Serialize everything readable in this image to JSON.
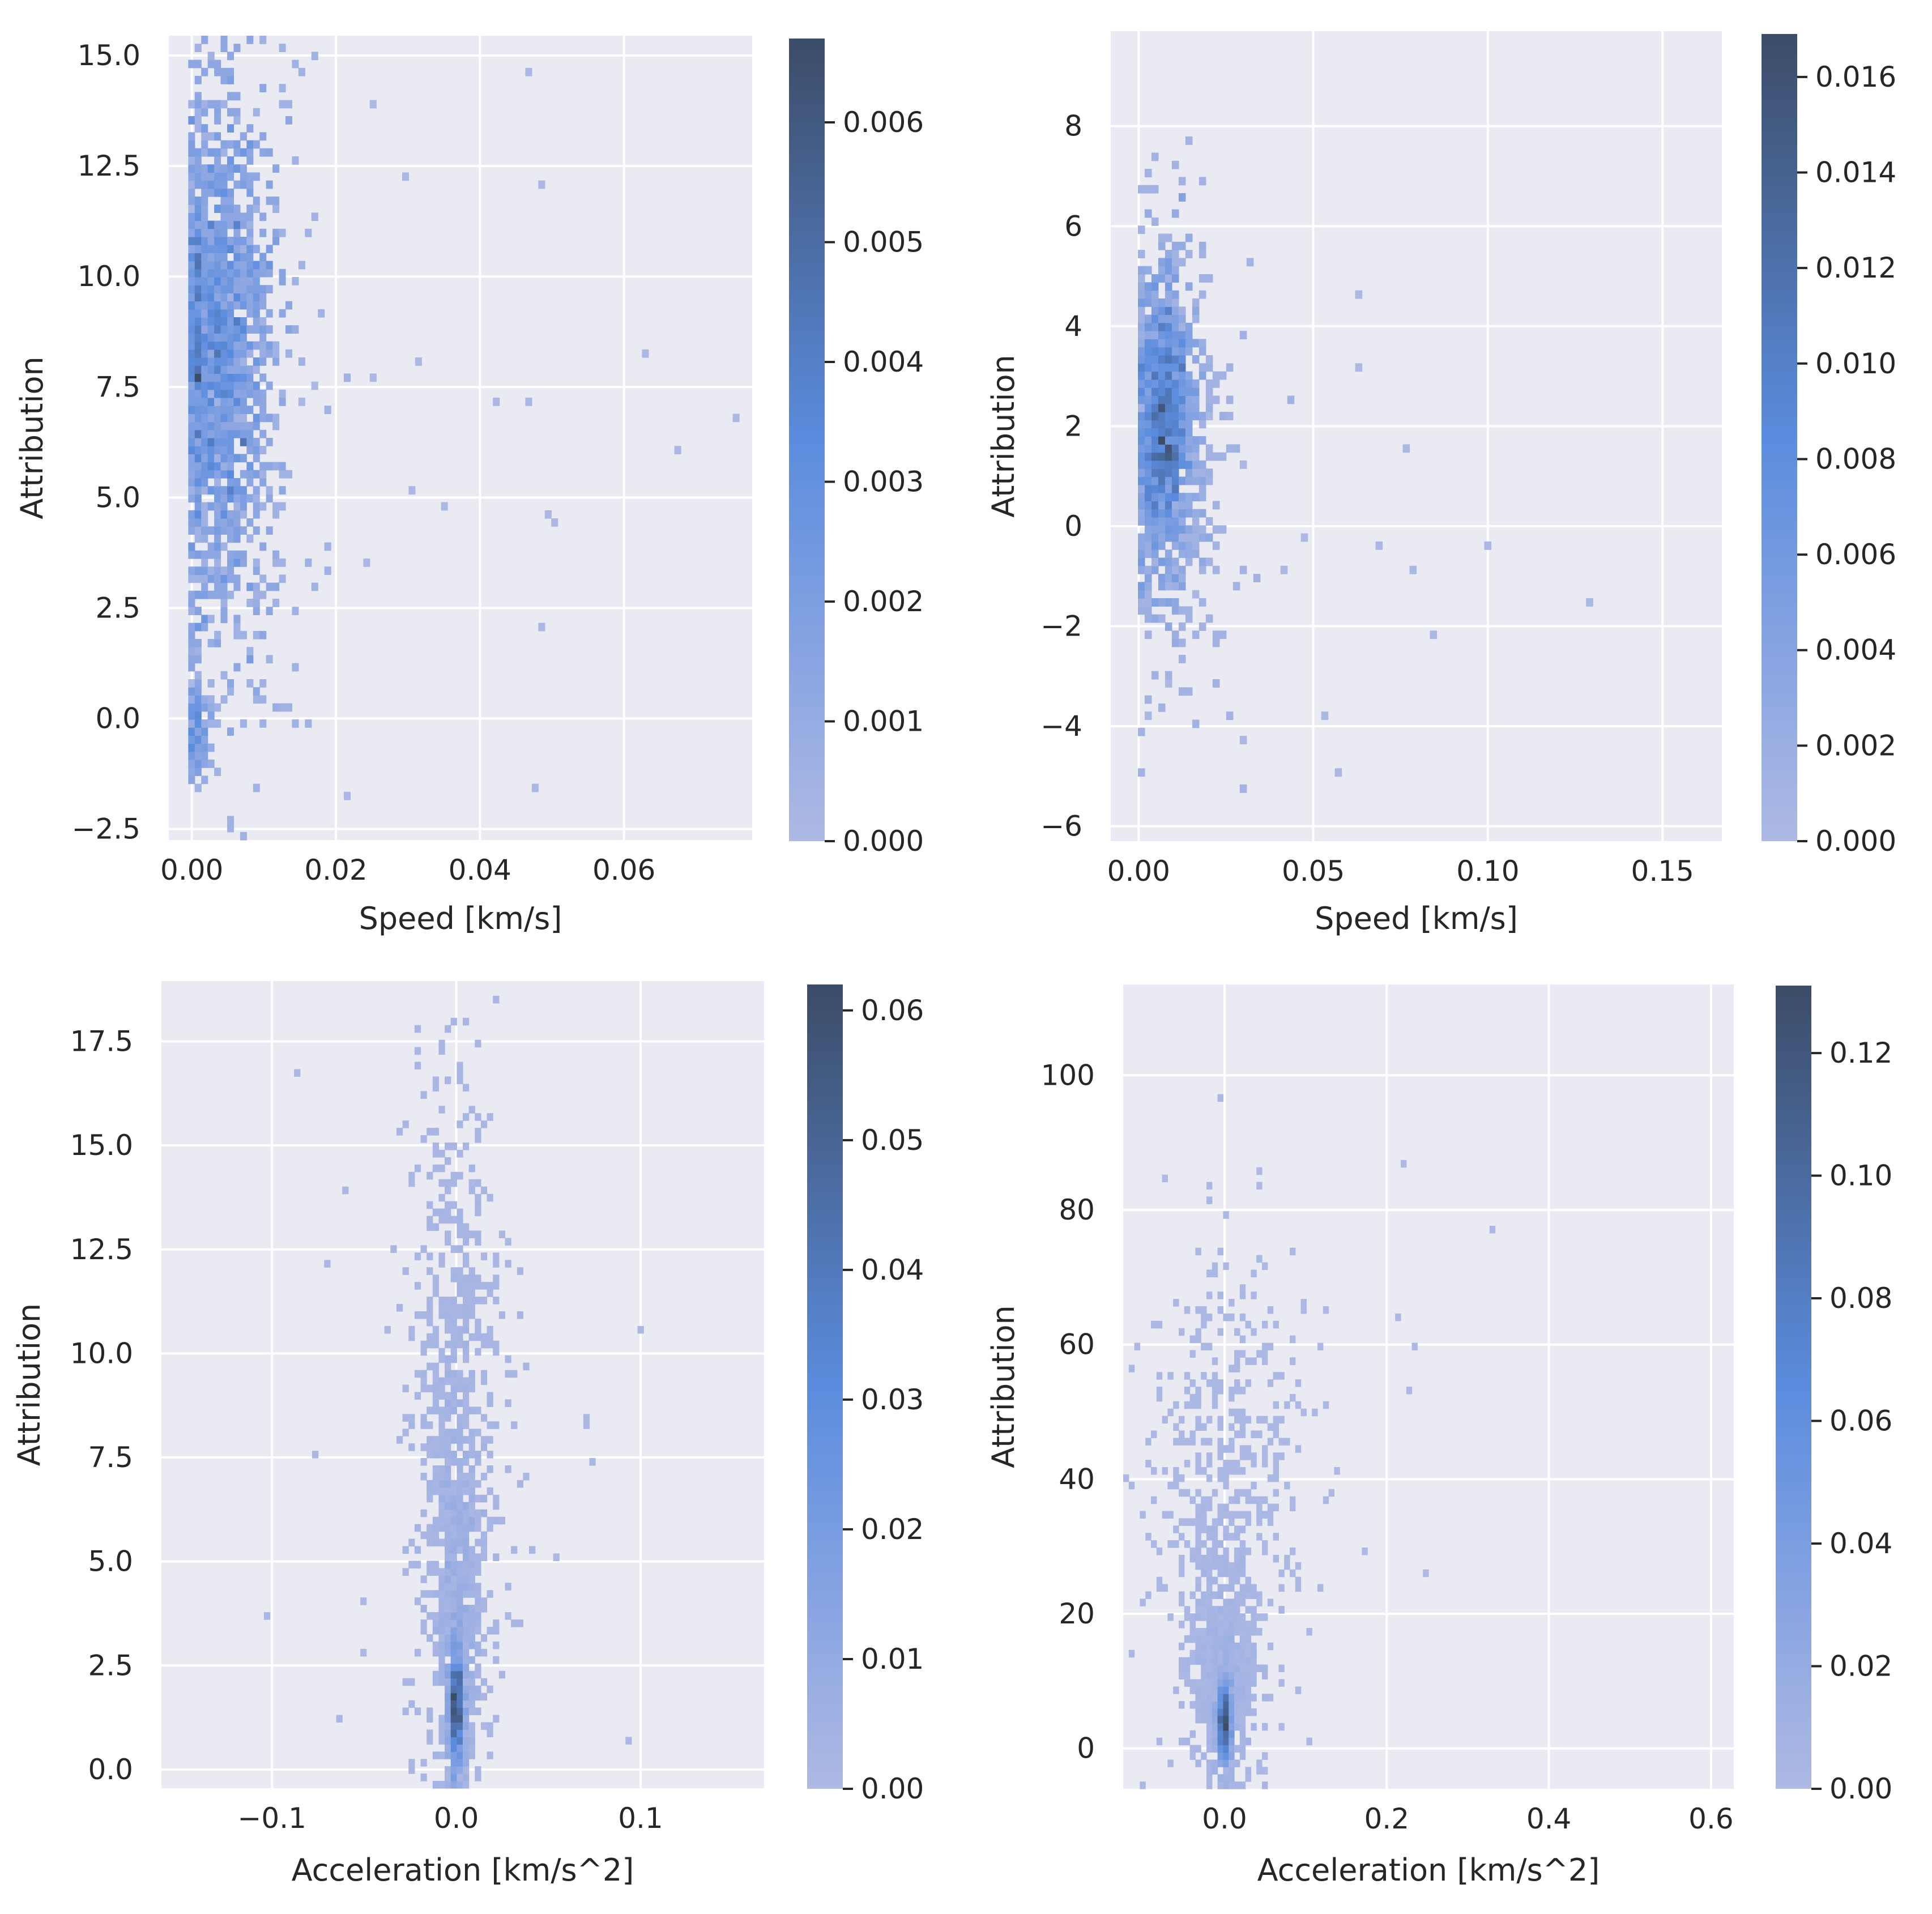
{
  "figure": {
    "background": "#ffffff",
    "panel_bg": "#eaeaf2",
    "grid_color": "#ffffff",
    "text_color": "#262626"
  },
  "colormap": {
    "low": "#aeb9e4",
    "mid": "#5b8cde",
    "high": "#3c4c67"
  },
  "chart_data": [
    {
      "id": "p1",
      "type": "heatmap",
      "title": "",
      "xlabel": "Speed [km/s]",
      "ylabel": "Attribution",
      "xlim": [
        -0.0032,
        0.0778
      ],
      "ylim": [
        -2.75,
        15.45
      ],
      "xticks": [
        0.0,
        0.02,
        0.04,
        0.06
      ],
      "xticklabels": [
        "0.00",
        "0.02",
        "0.04",
        "0.06"
      ],
      "yticks": [
        -2.5,
        0.0,
        2.5,
        5.0,
        7.5,
        10.0,
        12.5,
        15.0
      ],
      "yticklabels": [
        "−2.5",
        "0.0",
        "2.5",
        "5.0",
        "7.5",
        "10.0",
        "12.5",
        "15.0"
      ],
      "colorbar": {
        "min": 0.0,
        "max": 0.0067,
        "ticks": [
          0.0,
          0.001,
          0.002,
          0.003,
          0.004,
          0.005,
          0.006
        ],
        "ticklabels": [
          "0.000",
          "0.001",
          "0.002",
          "0.003",
          "0.004",
          "0.005",
          "0.006"
        ]
      },
      "bins": {
        "nx": 90,
        "ny": 100,
        "seed": 11
      },
      "clusters": [
        {
          "xc": 0.0035,
          "xs": 0.0035,
          "x_min": 0.0,
          "yc": 8.5,
          "ys": 2.8,
          "n": 1300,
          "w": 1.0
        },
        {
          "xc": 0.0045,
          "xs": 0.006,
          "x_min": 0.0,
          "yc": 7.0,
          "ys": 4.8,
          "n": 400,
          "w": 0.25
        },
        {
          "xc": 0.0005,
          "xs": 0.001,
          "x_min": 0.0,
          "yc": -0.2,
          "ys": 0.6,
          "n": 120,
          "w": 0.6
        },
        {
          "xc": 0.03,
          "xs": 0.025,
          "x_min": 0.0,
          "yc": 6.0,
          "ys": 5.0,
          "n": 30,
          "w": 0.02
        }
      ]
    },
    {
      "id": "p2",
      "type": "heatmap",
      "title": "",
      "xlabel": "Speed [km/s]",
      "ylabel": "Attribution",
      "xlim": [
        -0.008,
        0.167
      ],
      "ylim": [
        -6.3,
        9.9
      ],
      "xticks": [
        0.0,
        0.05,
        0.1,
        0.15
      ],
      "xticklabels": [
        "0.00",
        "0.05",
        "0.10",
        "0.15"
      ],
      "yticks": [
        -6,
        -4,
        -2,
        0,
        2,
        4,
        6,
        8
      ],
      "yticklabels": [
        "−6",
        "−4",
        "−2",
        "0",
        "2",
        "4",
        "6",
        "8"
      ],
      "colorbar": {
        "min": 0.0,
        "max": 0.0169,
        "ticks": [
          0.0,
          0.002,
          0.004,
          0.006,
          0.008,
          0.01,
          0.012,
          0.014,
          0.016
        ],
        "ticklabels": [
          "0.000",
          "0.002",
          "0.004",
          "0.006",
          "0.008",
          "0.010",
          "0.012",
          "0.014",
          "0.016"
        ]
      },
      "bins": {
        "nx": 90,
        "ny": 100,
        "seed": 23
      },
      "clusters": [
        {
          "xc": 0.007,
          "xs": 0.004,
          "x_min": 0.0,
          "yc": 2.0,
          "ys": 1.4,
          "n": 1200,
          "w": 1.0
        },
        {
          "xc": 0.009,
          "xs": 0.009,
          "x_min": 0.0,
          "yc": 1.5,
          "ys": 2.4,
          "n": 400,
          "w": 0.25
        },
        {
          "xc": 0.04,
          "xs": 0.045,
          "x_min": 0.0,
          "yc": 0.0,
          "ys": 2.5,
          "n": 25,
          "w": 0.02
        }
      ]
    },
    {
      "id": "p3",
      "type": "heatmap",
      "title": "",
      "xlabel": "Acceleration [km/s^2]",
      "ylabel": "Attribution",
      "xlim": [
        -0.16,
        0.167
      ],
      "ylim": [
        -0.45,
        18.95
      ],
      "xticks": [
        -0.1,
        0.0,
        0.1
      ],
      "xticklabels": [
        "−0.1",
        "0.0",
        "0.1"
      ],
      "yticks": [
        0.0,
        2.5,
        5.0,
        7.5,
        10.0,
        12.5,
        15.0,
        17.5
      ],
      "yticklabels": [
        "0.0",
        "2.5",
        "5.0",
        "7.5",
        "10.0",
        "12.5",
        "15.0",
        "17.5"
      ],
      "colorbar": {
        "min": 0.0,
        "max": 0.062,
        "ticks": [
          0.0,
          0.01,
          0.02,
          0.03,
          0.04,
          0.05,
          0.06
        ],
        "ticklabels": [
          "0.00",
          "0.01",
          "0.02",
          "0.03",
          "0.04",
          "0.05",
          "0.06"
        ]
      },
      "bins": {
        "nx": 100,
        "ny": 110,
        "seed": 37
      },
      "clusters": [
        {
          "xc": 0.0,
          "xs": 0.0018,
          "yc": 1.5,
          "ys": 0.7,
          "n": 600,
          "w": 1.0
        },
        {
          "xc": 0.0,
          "xs": 0.006,
          "yc": 4.0,
          "ys": 2.5,
          "n": 500,
          "w": 0.35
        },
        {
          "xc": 0.0,
          "xs": 0.013,
          "yc": 8.0,
          "ys": 4.5,
          "n": 700,
          "w": 0.12
        },
        {
          "xc": 0.0,
          "xs": 0.05,
          "yc": 8.0,
          "ys": 5.0,
          "n": 30,
          "w": 0.02
        }
      ]
    },
    {
      "id": "p4",
      "type": "heatmap",
      "title": "",
      "xlabel": "Acceleration [km/s^2]",
      "ylabel": "Attribution",
      "xlim": [
        -0.125,
        0.628
      ],
      "ylim": [
        -6.0,
        113.5
      ],
      "xticks": [
        0.0,
        0.2,
        0.4,
        0.6
      ],
      "xticklabels": [
        "0.0",
        "0.2",
        "0.4",
        "0.6"
      ],
      "yticks": [
        0,
        20,
        40,
        60,
        80,
        100
      ],
      "yticklabels": [
        "0",
        "20",
        "40",
        "60",
        "80",
        "100"
      ],
      "colorbar": {
        "min": 0.0,
        "max": 0.131,
        "ticks": [
          0.0,
          0.02,
          0.04,
          0.06,
          0.08,
          0.1,
          0.12
        ],
        "ticklabels": [
          "0.00",
          "0.02",
          "0.04",
          "0.06",
          "0.08",
          "0.10",
          "0.12"
        ]
      },
      "bins": {
        "nx": 110,
        "ny": 110,
        "seed": 53
      },
      "clusters": [
        {
          "xc": 0.0,
          "xs": 0.004,
          "yc": 4.0,
          "ys": 3.0,
          "n": 700,
          "w": 1.0
        },
        {
          "xc": 0.0,
          "xs": 0.02,
          "yc": 12.0,
          "ys": 9.0,
          "n": 600,
          "w": 0.2
        },
        {
          "xc": 0.0,
          "xs": 0.045,
          "yc": 35.0,
          "ys": 18.0,
          "n": 500,
          "w": 0.05
        },
        {
          "xc": 0.05,
          "xs": 0.12,
          "yc": 50.0,
          "ys": 25.0,
          "n": 40,
          "w": 0.01
        }
      ]
    }
  ]
}
